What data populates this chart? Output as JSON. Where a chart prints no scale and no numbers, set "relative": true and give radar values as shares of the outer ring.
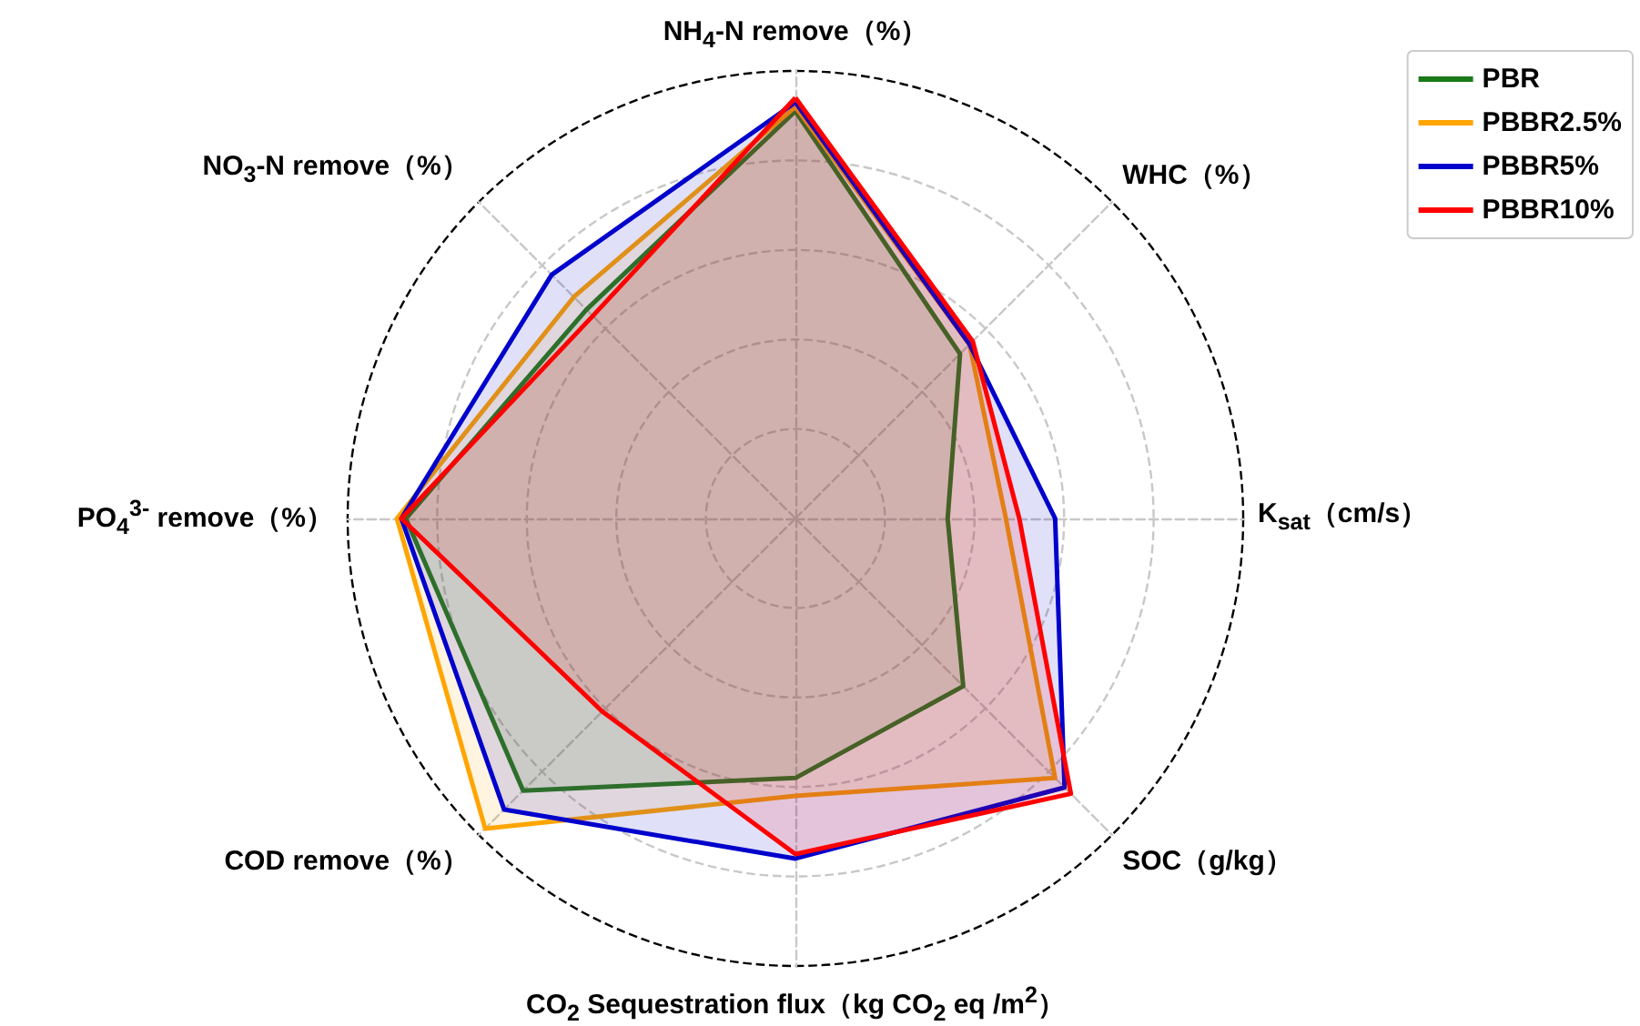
{
  "chart_data": {
    "type": "radar",
    "relative": true,
    "categories": [
      "NH$_{4}$-N remove（%）",
      "WHC（%）",
      "K$_{sat}$（cm/s）",
      "SOC（g/kg）",
      "CO$_{2}$ Sequestration flux（kg CO$_{2}$ eq /m$^{2}$）",
      "COD remove（%）",
      "PO$_{4}$$^{3-}$ remove（%）",
      "NO$_{3}$-N remove（%）"
    ],
    "series": [
      {
        "name": "PBR",
        "color": "#1a7a1a",
        "values": [
          0.91,
          0.52,
          0.34,
          0.53,
          0.58,
          0.86,
          0.87,
          0.66
        ]
      },
      {
        "name": "PBBR2.5%",
        "color": "#ffa500",
        "values": [
          0.92,
          0.55,
          0.47,
          0.82,
          0.62,
          0.98,
          0.89,
          0.7
        ]
      },
      {
        "name": "PBBR5%",
        "color": "#0000cc",
        "values": [
          0.93,
          0.55,
          0.58,
          0.85,
          0.76,
          0.92,
          0.88,
          0.77
        ]
      },
      {
        "name": "PBBR10%",
        "color": "#ff0000",
        "values": [
          0.94,
          0.56,
          0.5,
          0.87,
          0.75,
          0.61,
          0.88,
          0.64
        ]
      }
    ],
    "grid": true,
    "legend": "top right",
    "marker": "none",
    "line_style": "solid"
  }
}
